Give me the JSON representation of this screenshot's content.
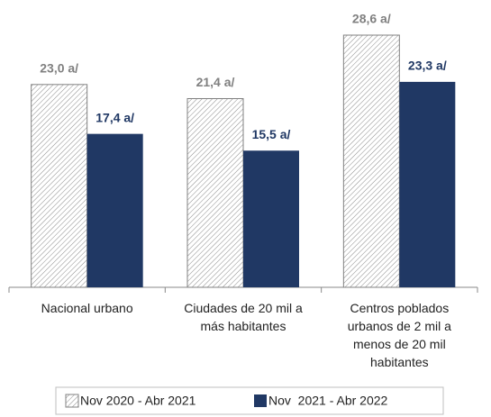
{
  "chart_data": {
    "type": "bar",
    "categories": [
      "Nacional urbano",
      "Ciudades de 20 mil a más habitantes",
      "Centros poblados urbanos de 2 mil a menos de 20 mil habitantes"
    ],
    "series": [
      {
        "name": "Nov 2020 - Abr 2021",
        "color": "#808080",
        "values": [
          23.0,
          21.4,
          28.6
        ],
        "value_labels": [
          "23,0 a/",
          "21,4 a/",
          "28,6 a/"
        ]
      },
      {
        "name": "Nov  2021 - Abr 2022",
        "color": "#203864",
        "values": [
          17.4,
          15.5,
          23.3
        ],
        "value_labels": [
          "17,4 a/",
          "15,5 a/",
          "23,3 a/"
        ]
      }
    ],
    "legend": "bottom"
  }
}
